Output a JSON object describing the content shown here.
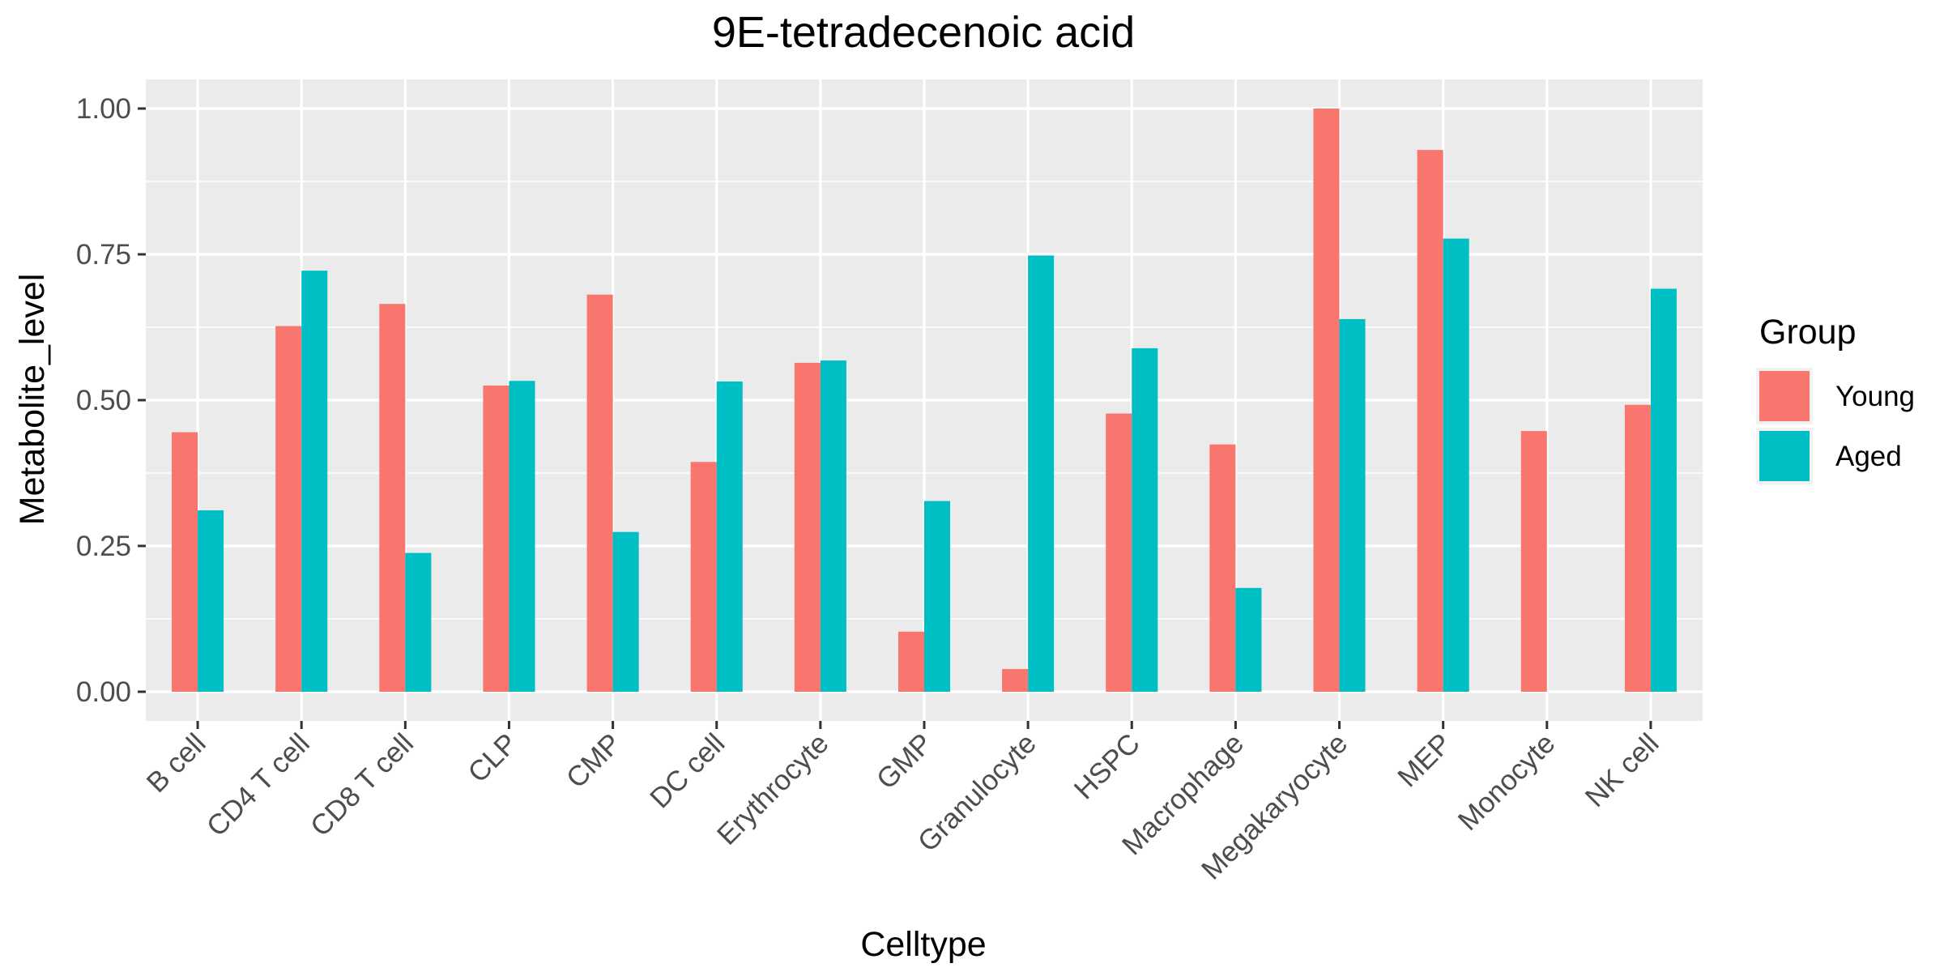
{
  "chart_data": {
    "type": "bar",
    "title": "9E-tetradecenoic acid",
    "xlabel": "Celltype",
    "ylabel": "Metabolite_level",
    "categories": [
      "B cell",
      "CD4 T cell",
      "CD8 T cell",
      "CLP",
      "CMP",
      "DC cell",
      "Erythrocyte",
      "GMP",
      "Granulocyte",
      "HSPC",
      "Macrophage",
      "Megakaryocyte",
      "MEP",
      "Monocyte",
      "NK cell"
    ],
    "series": [
      {
        "name": "Young",
        "color": "#F8766D",
        "values": [
          0.445,
          0.627,
          0.665,
          0.525,
          0.681,
          0.394,
          0.564,
          0.103,
          0.039,
          0.477,
          0.424,
          1.0,
          0.929,
          0.447,
          0.492
        ]
      },
      {
        "name": "Aged",
        "color": "#00BFC4",
        "values": [
          0.311,
          0.722,
          0.238,
          0.533,
          0.274,
          0.532,
          0.568,
          0.327,
          0.748,
          0.589,
          0.178,
          0.639,
          0.777,
          null,
          0.691
        ]
      }
    ],
    "ylim": [
      -0.05,
      1.05
    ],
    "yticks": [
      0.0,
      0.25,
      0.5,
      0.75,
      1.0
    ],
    "ytick_labels": [
      "0.00",
      "0.25",
      "0.50",
      "0.75",
      "1.00"
    ],
    "legend": {
      "title": "Group",
      "position": "right"
    },
    "grid": true,
    "panel_background": "#EBEBEB"
  }
}
